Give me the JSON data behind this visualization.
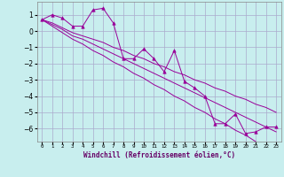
{
  "xlabel": "Windchill (Refroidissement éolien,°C)",
  "bg_color": "#c8eeee",
  "grid_color": "#aaaacc",
  "line_color": "#990099",
  "x_data": [
    0,
    1,
    2,
    3,
    4,
    5,
    6,
    7,
    8,
    9,
    10,
    11,
    12,
    13,
    14,
    15,
    16,
    17,
    18,
    19,
    20,
    21,
    22,
    23
  ],
  "y_main": [
    0.7,
    1.0,
    0.8,
    0.3,
    0.3,
    1.3,
    1.4,
    0.5,
    -1.7,
    -1.7,
    -1.1,
    -1.7,
    -2.5,
    -1.2,
    -3.1,
    -3.5,
    -4.0,
    -5.7,
    -5.7,
    -5.1,
    -6.3,
    -6.2,
    -5.9,
    -5.9
  ],
  "y_line1": [
    0.7,
    0.5,
    0.2,
    -0.1,
    -0.3,
    -0.5,
    -0.7,
    -1.0,
    -1.2,
    -1.5,
    -1.7,
    -2.0,
    -2.2,
    -2.5,
    -2.7,
    -3.0,
    -3.2,
    -3.5,
    -3.7,
    -4.0,
    -4.2,
    -4.5,
    -4.7,
    -5.0
  ],
  "y_line2": [
    0.7,
    0.4,
    0.1,
    -0.3,
    -0.5,
    -0.8,
    -1.1,
    -1.4,
    -1.7,
    -2.0,
    -2.3,
    -2.6,
    -2.9,
    -3.2,
    -3.5,
    -3.8,
    -4.1,
    -4.4,
    -4.7,
    -5.0,
    -5.3,
    -5.6,
    -5.9,
    -6.2
  ],
  "y_line3": [
    0.7,
    0.3,
    -0.1,
    -0.5,
    -0.8,
    -1.2,
    -1.5,
    -1.9,
    -2.2,
    -2.6,
    -2.9,
    -3.3,
    -3.6,
    -4.0,
    -4.3,
    -4.7,
    -5.0,
    -5.4,
    -5.7,
    -6.1,
    -6.4,
    -6.8,
    -7.1,
    -7.5
  ],
  "ylim": [
    -6.8,
    1.8
  ],
  "xlim": [
    -0.5,
    23.5
  ],
  "yticks": [
    1,
    0,
    -1,
    -2,
    -3,
    -4,
    -5,
    -6
  ],
  "xtick_labels": [
    "0",
    "1",
    "2",
    "3",
    "4",
    "5",
    "6",
    "7",
    "8",
    "9",
    "10",
    "11",
    "12",
    "13",
    "14",
    "15",
    "16",
    "17",
    "18",
    "19",
    "20",
    "21",
    "22",
    "23"
  ]
}
